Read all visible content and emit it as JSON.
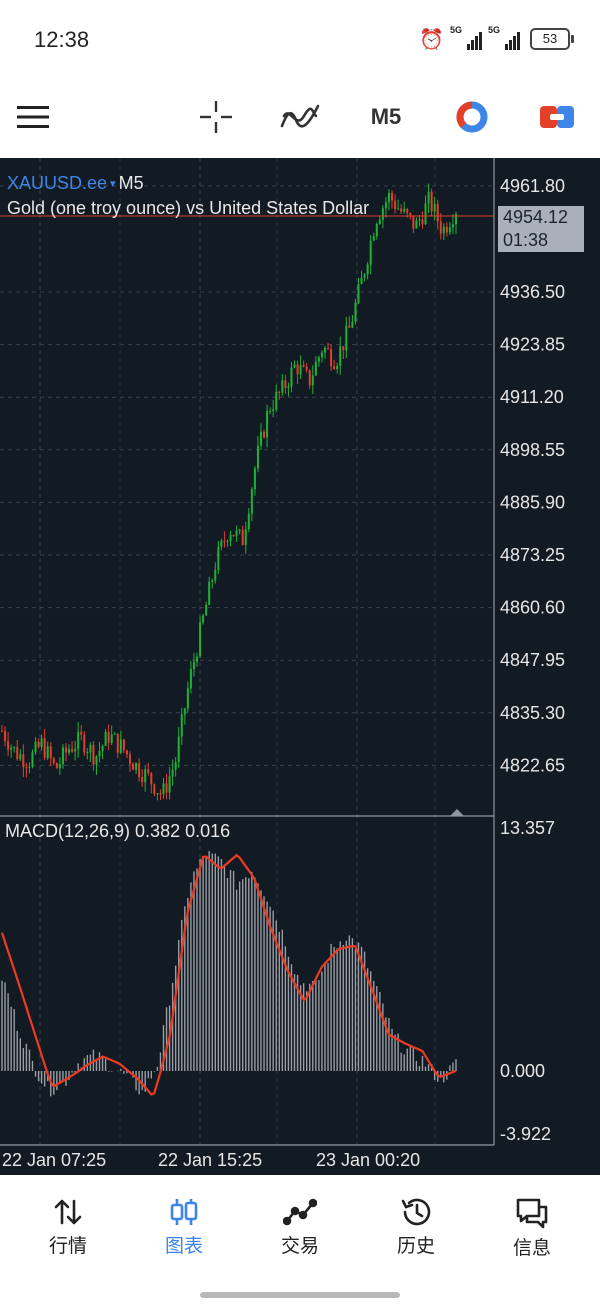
{
  "status_bar": {
    "time": "12:38",
    "signal_1": "5G",
    "signal_2": "5G",
    "battery": "53"
  },
  "toolbar": {
    "menu_icon": "hamburger-menu-icon",
    "crosshair_icon": "crosshair-icon",
    "indicators_icon": "indicators-icon",
    "timeframe": "M5",
    "timeframe_icon": "timeframe-dial-icon",
    "trade_icon": "one-click-trade-icon"
  },
  "chart": {
    "symbol": "XAUUSD.ee",
    "symbol_dropdown": "▾",
    "timeframe": "M5",
    "description": "Gold (one troy ounce) vs United States Dollar",
    "current_price": "4954.12",
    "bar_countdown": "01:38",
    "price_axis": [
      "4961.80",
      "4936.50",
      "4923.85",
      "4911.20",
      "4898.55",
      "4885.90",
      "4873.25",
      "4860.60",
      "4847.95",
      "4835.30",
      "4822.65"
    ],
    "macd_label": "MACD(12,26,9) 0.382 0.016",
    "macd_axis": [
      "13.357",
      "0.000",
      "-3.922"
    ],
    "time_axis": [
      "22 Jan 07:25",
      "22 Jan 15:25",
      "23 Jan 00:20"
    ],
    "colors": {
      "bull": "#1fb336",
      "bear": "#e3402a",
      "signal": "#ef3a22",
      "histogram": "#9a9da3",
      "background": "#121a23",
      "symbol": "#3d86e8"
    }
  },
  "chart_data": [
    {
      "type": "candlestick",
      "title": "XAUUSD.ee M5",
      "description": "Gold (one troy ounce) vs United States Dollar",
      "x_labels": [
        "22 Jan 07:25",
        "22 Jan 15:25",
        "23 Jan 00:20"
      ],
      "close_path": [
        {
          "x": "22 Jan 07:25",
          "y": 4833
        },
        {
          "y": 4828
        },
        {
          "y": 4826
        },
        {
          "y": 4830
        },
        {
          "y": 4824
        },
        {
          "y": 4829
        },
        {
          "y": 4831
        },
        {
          "y": 4827
        },
        {
          "y": 4832
        },
        {
          "y": 4829
        },
        {
          "y": 4825
        },
        {
          "y": 4822
        },
        {
          "y": 4818
        },
        {
          "y": 4826
        },
        {
          "x": "22 Jan 15:25",
          "y": 4844
        },
        {
          "y": 4858
        },
        {
          "y": 4872
        },
        {
          "y": 4880
        },
        {
          "y": 4877
        },
        {
          "y": 4895
        },
        {
          "y": 4908
        },
        {
          "y": 4912
        },
        {
          "y": 4918
        },
        {
          "y": 4914
        },
        {
          "y": 4922
        },
        {
          "y": 4919
        },
        {
          "y": 4926
        },
        {
          "y": 4938
        },
        {
          "y": 4952
        },
        {
          "y": 4957
        },
        {
          "x": "23 Jan 00:20",
          "y": 4953
        },
        {
          "y": 4950
        },
        {
          "y": 4956
        },
        {
          "y": 4949
        },
        {
          "y": 4954.12
        }
      ],
      "last_price": 4954.12,
      "ylim": [
        4816,
        4964
      ]
    },
    {
      "type": "line",
      "title": "MACD(12,26,9)",
      "values_label": "0.382 0.016",
      "series": [
        {
          "name": "MACD",
          "style": "histogram",
          "values": [
            5.2,
            2.5,
            0.3,
            -1.2,
            -0.7,
            0.6,
            0.8,
            0.3,
            -0.4,
            -1.4,
            0.6,
            5.5,
            10.4,
            11.9,
            11.5,
            10.3,
            11.1,
            9.5,
            7.4,
            4.9,
            4.6,
            6.6,
            7.5,
            6.6,
            4.3,
            1.9,
            1.0,
            0.5,
            -0.6,
            0.38
          ]
        },
        {
          "name": "Signal",
          "style": "line",
          "values": [
            7.6,
            4.8,
            1.9,
            -1.0,
            -0.4,
            0.3,
            0.8,
            0.4,
            -0.4,
            -1.6,
            2.0,
            8.6,
            11.9,
            11.1,
            11.9,
            10.6,
            7.8,
            5.5,
            3.8,
            5.7,
            6.7,
            6.9,
            4.5,
            2.0,
            1.5,
            1.1,
            -0.4,
            0.016
          ]
        }
      ],
      "ylim": [
        -3.922,
        13.357
      ]
    }
  ],
  "bottom_nav": {
    "items": [
      {
        "label": "行情",
        "icon": "quotes-arrows-icon",
        "active": false
      },
      {
        "label": "图表",
        "icon": "chart-candles-icon",
        "active": true
      },
      {
        "label": "交易",
        "icon": "trade-line-icon",
        "active": false
      },
      {
        "label": "历史",
        "icon": "history-clock-icon",
        "active": false
      },
      {
        "label": "信息",
        "icon": "messages-chat-icon",
        "active": false
      }
    ]
  }
}
